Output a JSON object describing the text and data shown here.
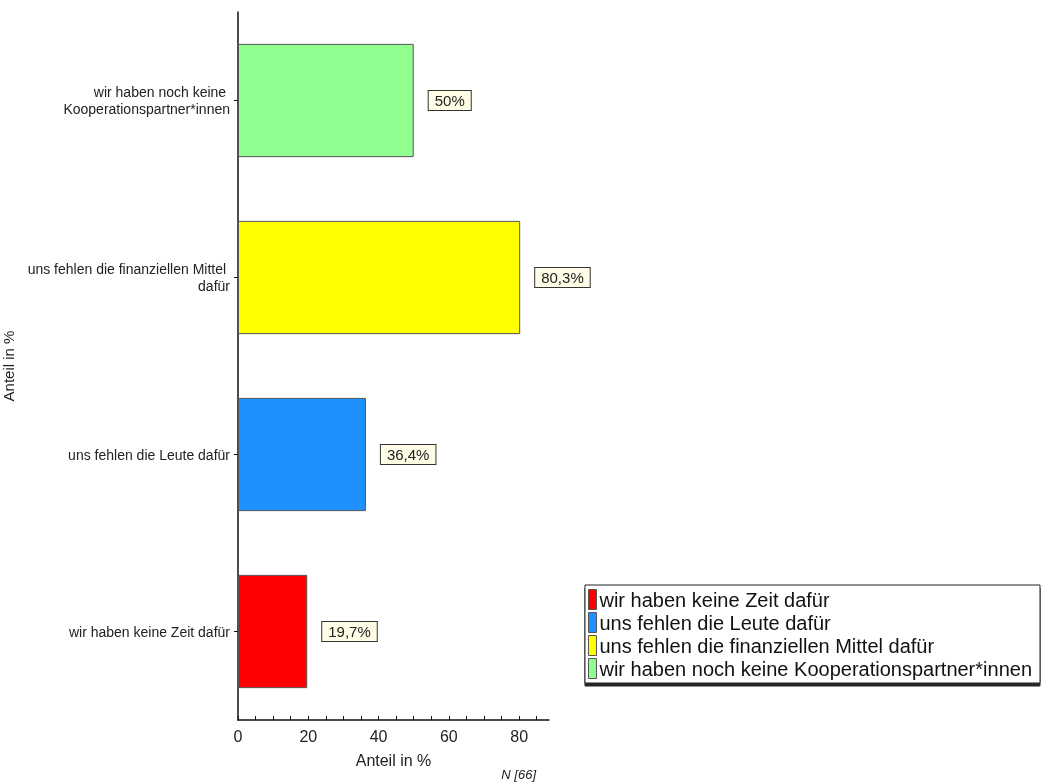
{
  "chart_data": {
    "type": "bar",
    "orientation": "horizontal",
    "stacked": true,
    "xlabel": "Anteil in %",
    "ylabel": "Anteil in %",
    "categories": [
      "wir haben noch keine Kooperationspartner*innen",
      "uns fehlen die finanziellen Mittel dafür",
      "uns fehlen die Leute dafür",
      "wir haben keine Zeit dafür"
    ],
    "series": [
      {
        "name": "wir haben keine Zeit dafür",
        "color": "#ff0000",
        "values": [
          null,
          null,
          null,
          19.7
        ],
        "value_labels": [
          null,
          null,
          null,
          "19,7%"
        ]
      },
      {
        "name": "uns fehlen die Leute dafür",
        "color": "#1e90ff",
        "values": [
          null,
          null,
          36.4,
          null
        ],
        "value_labels": [
          null,
          null,
          "36,4%",
          null
        ]
      },
      {
        "name": "uns fehlen die finanziellen Mittel dafür",
        "color": "#ffff00",
        "values": [
          null,
          80.3,
          null,
          null
        ],
        "value_labels": [
          null,
          "80,3%",
          null,
          null
        ]
      },
      {
        "name": "wir haben noch keine Kooperationspartner*innen",
        "color": "#90ff90",
        "values": [
          50,
          null,
          null,
          null
        ],
        "value_labels": [
          "50%",
          null,
          null,
          null
        ]
      }
    ],
    "xlim": [
      0,
      88.5
    ],
    "xticks": [
      0,
      {
        "value": 5,
        "label": null
      },
      {
        "value": 10,
        "label": null
      },
      {
        "value": 15,
        "label": null
      },
      20,
      {
        "value": 25,
        "label": null
      },
      {
        "value": 30,
        "label": null
      },
      {
        "value": 35,
        "label": null
      },
      40,
      {
        "value": 45,
        "label": null
      },
      {
        "value": 50,
        "label": null
      },
      {
        "value": 55,
        "label": null
      },
      60,
      {
        "value": 65,
        "label": null
      },
      {
        "value": 70,
        "label": null
      },
      {
        "value": 75,
        "label": null
      },
      80,
      {
        "value": 85,
        "label": null
      }
    ],
    "grid": false,
    "legend": "bottom right",
    "annotations": [
      "N [66]"
    ]
  }
}
